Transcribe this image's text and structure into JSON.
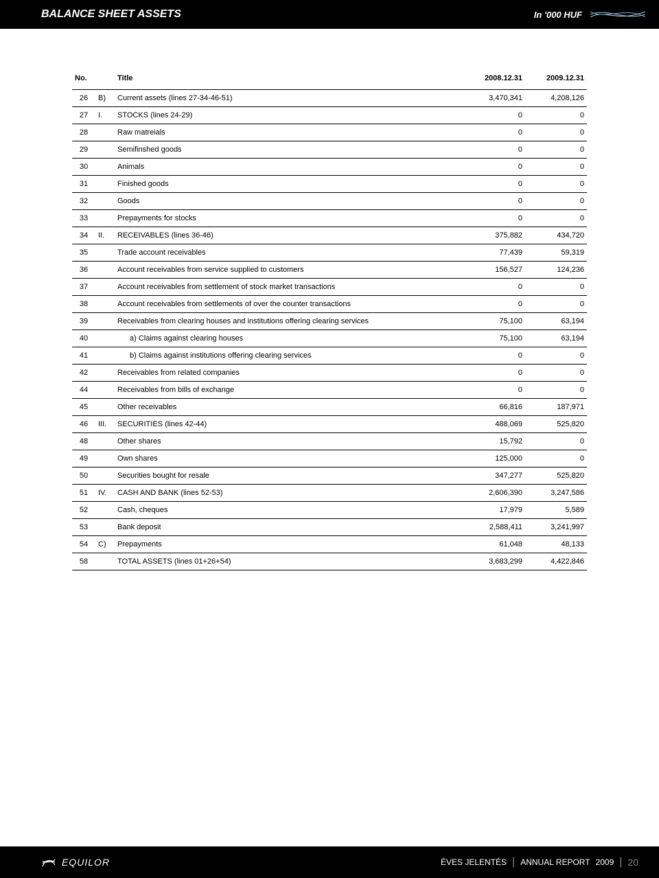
{
  "header": {
    "title": "BALANCE SHEET ASSETS",
    "unit": "In '000 HUF"
  },
  "table": {
    "columns": {
      "no": "No.",
      "title": "Title",
      "y1": "2008.12.31",
      "y2": "2009.12.31"
    },
    "rows": [
      {
        "no": "26",
        "prefix": "B)",
        "title": "Current assets (lines 27-34-46-51)",
        "y1": "3,470,341",
        "y2": "4,208,126",
        "indent": 0
      },
      {
        "no": "27",
        "prefix": "I.",
        "title": "STOCKS (lines 24-29)",
        "y1": "0",
        "y2": "0",
        "indent": 0
      },
      {
        "no": "28",
        "prefix": "",
        "title": "Raw matreials",
        "y1": "0",
        "y2": "0",
        "indent": 0
      },
      {
        "no": "29",
        "prefix": "",
        "title": "Semifinshed goods",
        "y1": "0",
        "y2": "0",
        "indent": 0
      },
      {
        "no": "30",
        "prefix": "",
        "title": "Animals",
        "y1": "0",
        "y2": "0",
        "indent": 0
      },
      {
        "no": "31",
        "prefix": "",
        "title": "Finished goods",
        "y1": "0",
        "y2": "0",
        "indent": 0
      },
      {
        "no": "32",
        "prefix": "",
        "title": "Goods",
        "y1": "0",
        "y2": "0",
        "indent": 0
      },
      {
        "no": "33",
        "prefix": "",
        "title": "Prepayments for stocks",
        "y1": "0",
        "y2": "0",
        "indent": 0
      },
      {
        "no": "34",
        "prefix": "II.",
        "title": "RECEIVABLES (lines 36-46)",
        "y1": "375,882",
        "y2": "434,720",
        "indent": 0
      },
      {
        "no": "35",
        "prefix": "",
        "title": "Trade account receivables",
        "y1": "77,439",
        "y2": "59,319",
        "indent": 0
      },
      {
        "no": "36",
        "prefix": "",
        "title": "Account receivables from service supplied to customers",
        "y1": "156,527",
        "y2": "124,236",
        "indent": 0
      },
      {
        "no": "37",
        "prefix": "",
        "title": "Account receivables from settlement of stock market  transactions",
        "y1": "0",
        "y2": "0",
        "indent": 0
      },
      {
        "no": "38",
        "prefix": "",
        "title": "Account receivables from settlements of over the counter transactions",
        "y1": "0",
        "y2": "0",
        "indent": 0
      },
      {
        "no": "39",
        "prefix": "",
        "title": "Receivables from clearing houses and institutions offering clearing services",
        "y1": "75,100",
        "y2": "63,194",
        "indent": 0
      },
      {
        "no": "40",
        "prefix": "",
        "title": "a) Claims against clearing houses",
        "y1": "75,100",
        "y2": "63,194",
        "indent": 1
      },
      {
        "no": "41",
        "prefix": "",
        "title": "b) Claims against institutions offering clearing services",
        "y1": "0",
        "y2": "0",
        "indent": 1
      },
      {
        "no": "42",
        "prefix": "",
        "title": "Receivables from related companies",
        "y1": "0",
        "y2": "0",
        "indent": 0
      },
      {
        "no": "44",
        "prefix": "",
        "title": "Receivables from bills of exchange",
        "y1": "0",
        "y2": "0",
        "indent": 0
      },
      {
        "no": "45",
        "prefix": "",
        "title": "Other receivables",
        "y1": "66,816",
        "y2": "187,971",
        "indent": 0
      },
      {
        "no": "46",
        "prefix": "III.",
        "title": "SECURITIES (lines 42-44)",
        "y1": "488,069",
        "y2": "525,820",
        "indent": 0
      },
      {
        "no": "48",
        "prefix": "",
        "title": "Other shares",
        "y1": "15,792",
        "y2": "0",
        "indent": 0
      },
      {
        "no": "49",
        "prefix": "",
        "title": "Own shares",
        "y1": "125,000",
        "y2": "0",
        "indent": 0
      },
      {
        "no": "50",
        "prefix": "",
        "title": "Securities bought for resale",
        "y1": "347,277",
        "y2": "525,820",
        "indent": 0
      },
      {
        "no": "51",
        "prefix": "IV.",
        "title": "CASH AND BANK (lines 52-53)",
        "y1": "2,606,390",
        "y2": "3,247,586",
        "indent": 0
      },
      {
        "no": "52",
        "prefix": "",
        "title": "Cash, cheques",
        "y1": "17,979",
        "y2": "5,589",
        "indent": 0
      },
      {
        "no": "53",
        "prefix": "",
        "title": "Bank deposit",
        "y1": "2,588,411",
        "y2": "3,241,997",
        "indent": 0
      },
      {
        "no": "54",
        "prefix": "C)",
        "title": "Prepayments",
        "y1": "61,048",
        "y2": "48,133",
        "indent": 0
      },
      {
        "no": "58",
        "prefix": "",
        "title": "TOTAL ASSETS (lines 01+26+54)",
        "y1": "3,683,299",
        "y2": "4,422,846",
        "indent": 0
      }
    ]
  },
  "footer": {
    "logo_text": "EQUILOR",
    "report_hu": "ÉVES JELENTÉS",
    "report_en": "ANNUAL REPORT",
    "year": "2009",
    "page": "20"
  },
  "colors": {
    "header_bg": "#000000",
    "header_fg": "#ffffff",
    "body_bg": "#ffffff",
    "text": "#000000",
    "footer_muted": "#888888"
  }
}
